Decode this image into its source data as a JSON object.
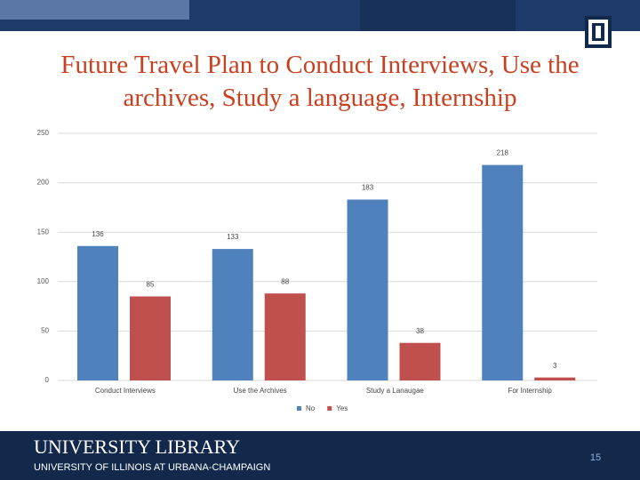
{
  "chart_data": {
    "type": "bar",
    "title": "Future Travel Plan to Conduct Interviews, Use the archives, Study a language, Internship",
    "categories": [
      "Conduct Interviews",
      "Use the Archives",
      "Study a Lanaugae",
      "For Internship"
    ],
    "series": [
      {
        "name": "No",
        "color": "#4f81bd",
        "values": [
          136,
          133,
          183,
          218
        ]
      },
      {
        "name": "Yes",
        "color": "#c0504d",
        "values": [
          85,
          88,
          38,
          3
        ]
      }
    ],
    "ylim": [
      0,
      250
    ],
    "yticks": [
      0,
      50,
      100,
      150,
      200,
      250
    ],
    "grid": true,
    "legend": "bottom"
  },
  "footer": {
    "title": "UNIVERSITY LIBRARY",
    "subtitle": "UNIVERSITY OF ILLINOIS AT URBANA-CHAMPAIGN",
    "page": "15"
  }
}
